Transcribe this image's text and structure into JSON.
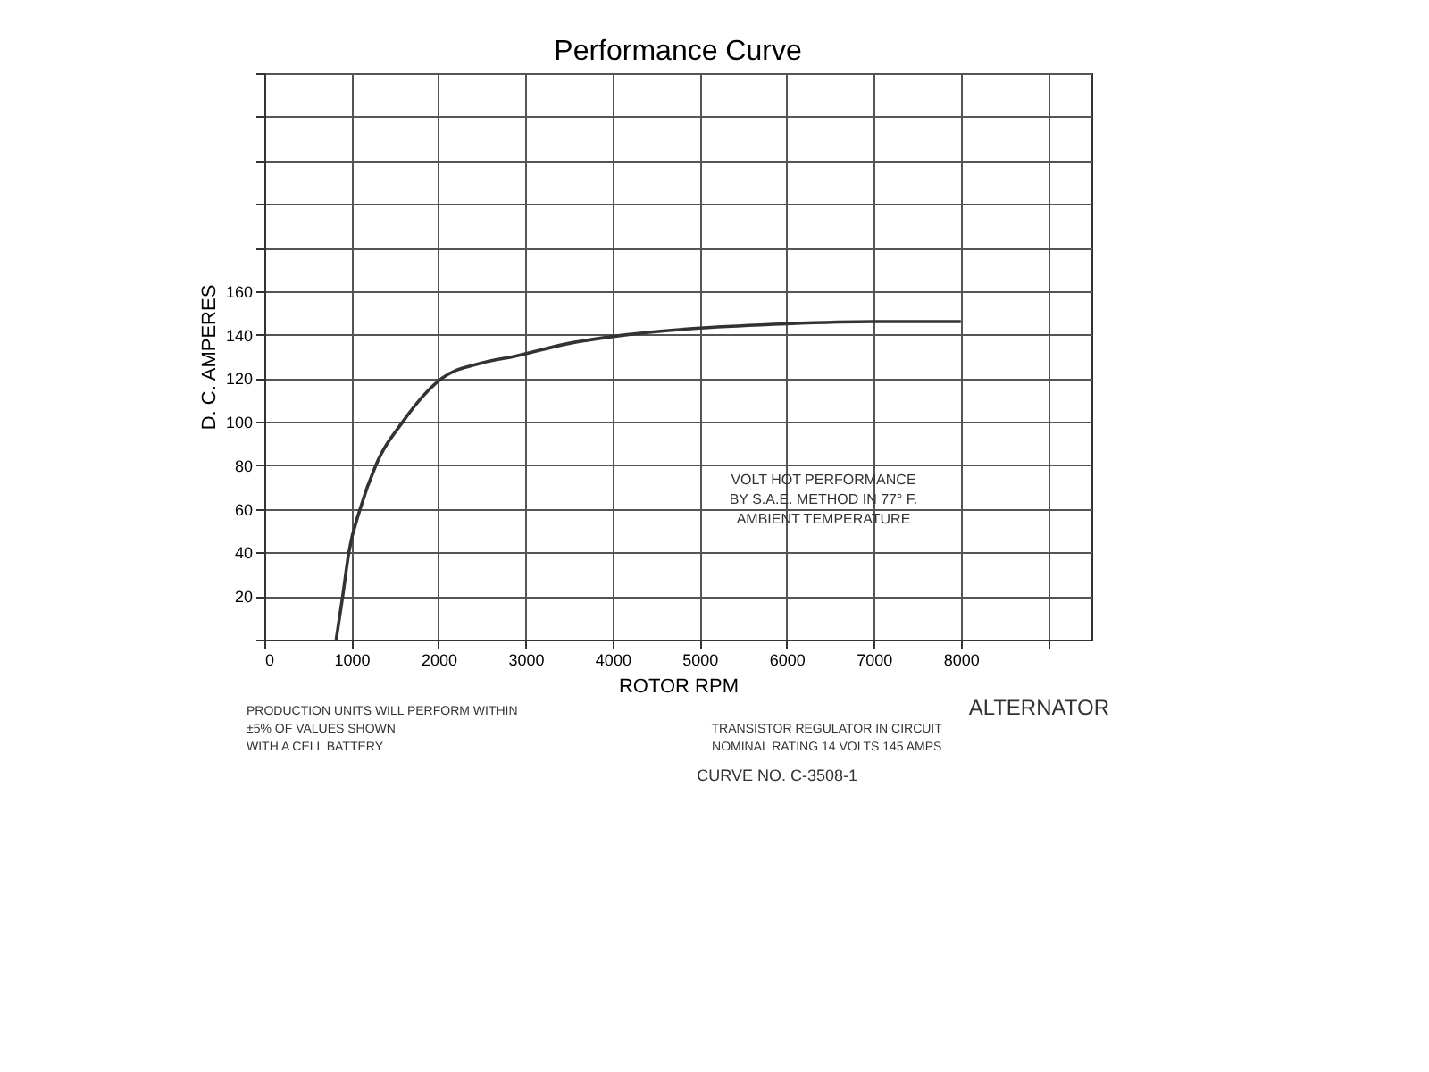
{
  "chart_data": {
    "type": "line",
    "title": "Performance Curve",
    "xlabel": "ROTOR RPM",
    "ylabel": "D. C. AMPERES",
    "x": [
      825,
      900,
      970,
      1100,
      1280,
      1590,
      2040,
      2500,
      2870,
      3500,
      4165,
      5000,
      6000,
      7000,
      8000
    ],
    "series": [
      {
        "color": "#333333",
        "values": [
          0,
          20,
          40,
          60,
          80,
          100,
          120,
          127,
          130,
          136,
          140,
          143,
          145,
          146,
          146
        ]
      }
    ],
    "xlim": [
      0,
      9500
    ],
    "ylim": [
      0,
      260
    ],
    "xticks": [
      0,
      1000,
      2000,
      3000,
      4000,
      5000,
      6000,
      7000,
      8000,
      {
        "value": 9000,
        "label": null
      }
    ],
    "yticks": [
      {
        "value": 0,
        "label": null
      },
      20,
      40,
      60,
      80,
      100,
      120,
      140,
      160,
      {
        "value": 180,
        "label": null
      },
      {
        "value": 200,
        "label": null
      },
      {
        "value": 220,
        "label": null
      },
      {
        "value": 240,
        "label": null
      },
      {
        "value": 260,
        "label": null
      }
    ],
    "grid": true,
    "marker": "none",
    "line_style": "solid",
    "annotations": [
      "VOLT HOT PERFORMANCE\nBY S.A.E. METHOD IN 77° F.\nAMBIENT TEMPERATURE",
      "PRODUCTION UNITS WILL PERFORM WITHIN\n±5% OF VALUES SHOWN\nWITH A CELL BATTERY",
      "ALTERNATOR",
      "TRANSISTOR REGULATOR IN CIRCUIT",
      "NOMINAL RATING 14 VOLTS 145 AMPS",
      "CURVE NO. C-3508-1"
    ]
  }
}
